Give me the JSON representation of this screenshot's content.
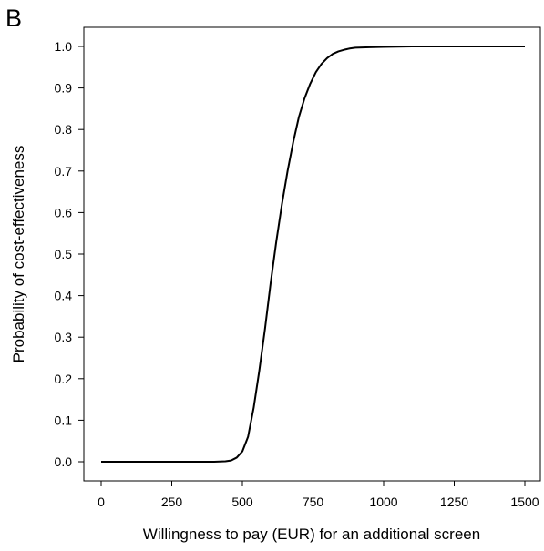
{
  "panel_label": "B",
  "chart_data": {
    "type": "line",
    "title": "",
    "xlabel": "Willingness to pay (EUR) for an additional screen",
    "ylabel": "Probability of cost-effectiveness",
    "xlim": [
      0,
      1500
    ],
    "ylim": [
      0.0,
      1.0
    ],
    "x_ticks": [
      0,
      250,
      500,
      750,
      1000,
      1250,
      1500
    ],
    "x_tick_labels": [
      "0",
      "250",
      "500",
      "750",
      "1000",
      "1250",
      "1500"
    ],
    "y_ticks": [
      0.0,
      0.1,
      0.2,
      0.3,
      0.4,
      0.5,
      0.6,
      0.7,
      0.8,
      0.9,
      1.0
    ],
    "y_tick_labels": [
      "0.0",
      "0.1",
      "0.2",
      "0.3",
      "0.4",
      "0.5",
      "0.6",
      "0.7",
      "0.8",
      "0.9",
      "1.0"
    ],
    "grid": false,
    "legend": false,
    "line_color": "#000000",
    "series": [
      {
        "x": [
          0,
          100,
          200,
          300,
          400,
          440,
          460,
          480,
          500,
          520,
          540,
          560,
          580,
          600,
          620,
          640,
          660,
          680,
          700,
          720,
          740,
          760,
          780,
          800,
          820,
          840,
          860,
          880,
          900,
          950,
          1000,
          1100,
          1200,
          1300,
          1400,
          1500
        ],
        "y": [
          0.0,
          0.0,
          0.0,
          0.0,
          0.0,
          0.001,
          0.003,
          0.01,
          0.025,
          0.06,
          0.13,
          0.22,
          0.32,
          0.43,
          0.53,
          0.62,
          0.7,
          0.77,
          0.83,
          0.875,
          0.91,
          0.938,
          0.958,
          0.972,
          0.982,
          0.988,
          0.992,
          0.995,
          0.997,
          0.998,
          0.999,
          1.0,
          1.0,
          1.0,
          1.0,
          1.0
        ]
      }
    ]
  }
}
